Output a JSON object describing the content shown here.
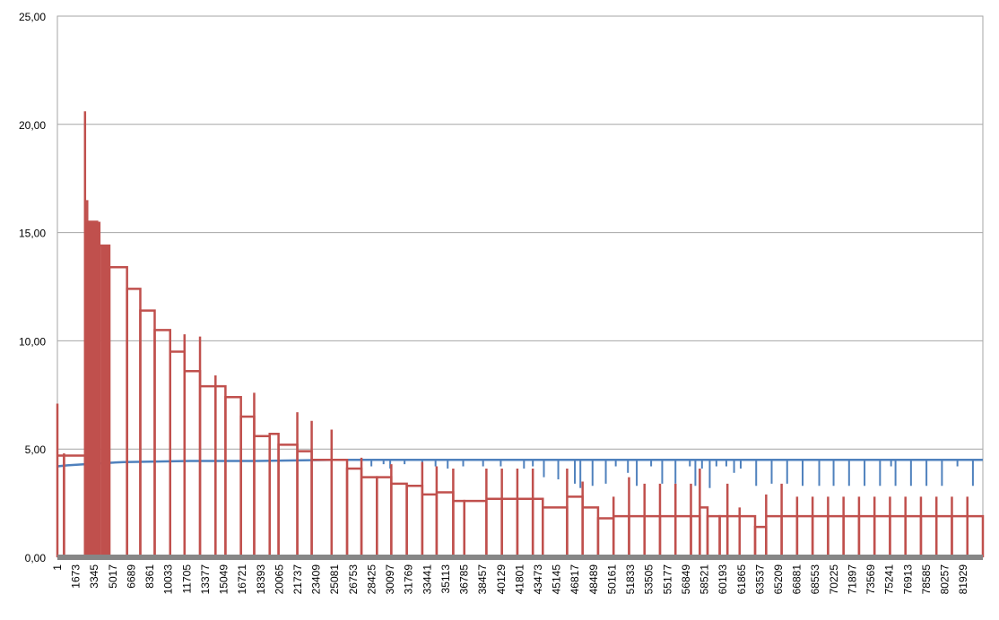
{
  "chart_data": {
    "type": "line",
    "title": "",
    "xlabel": "",
    "ylabel": "",
    "ylim": [
      0,
      25
    ],
    "xlim": [
      1,
      83700
    ],
    "grid": true,
    "legend": "none",
    "y_ticks": [
      "0,00",
      "5,00",
      "10,00",
      "15,00",
      "20,00",
      "25,00"
    ],
    "y_tick_values": [
      0,
      5,
      10,
      15,
      20,
      25
    ],
    "x_ticks": [
      "1",
      "1673",
      "3345",
      "5017",
      "6689",
      "8361",
      "10033",
      "11705",
      "13377",
      "15049",
      "16721",
      "18393",
      "20065",
      "21737",
      "23409",
      "25081",
      "26753",
      "28425",
      "30097",
      "31769",
      "33441",
      "35113",
      "36785",
      "38457",
      "40129",
      "41801",
      "43473",
      "45145",
      "46817",
      "48489",
      "50161",
      "51833",
      "53505",
      "55177",
      "56849",
      "58521",
      "60193",
      "61865",
      "63537",
      "65209",
      "66881",
      "68553",
      "70225",
      "71897",
      "73569",
      "75241",
      "76913",
      "78585",
      "80257",
      "81929"
    ],
    "colors": {
      "series_blue": "#4f81bd",
      "series_red": "#c0504d",
      "baseline": "#868686",
      "grid": "#a6a6a6"
    },
    "series": [
      {
        "color": "#c0504d",
        "baseline": 0,
        "segments": [
          {
            "x0": 1,
            "x1": 600,
            "v": 4.7,
            "spike": 7.1
          },
          {
            "x0": 600,
            "x1": 2500,
            "v": 4.7,
            "spike": 4.8
          },
          {
            "x0": 2500,
            "x1": 2700,
            "v": 14.5,
            "spike": 20.6
          },
          {
            "x0": 2700,
            "x1": 3600,
            "v": 15.5,
            "spike": 16.5
          },
          {
            "x0": 3600,
            "x1": 4700,
            "v": 14.4,
            "spike": 14.4
          },
          {
            "x0": 4700,
            "x1": 6300,
            "v": 13.4,
            "spike": 13.4
          },
          {
            "x0": 6300,
            "x1": 7500,
            "v": 12.4,
            "spike": 12.4
          },
          {
            "x0": 7500,
            "x1": 8800,
            "v": 11.4,
            "spike": 11.4
          },
          {
            "x0": 8800,
            "x1": 10200,
            "v": 10.5,
            "spike": 10.5
          },
          {
            "x0": 10200,
            "x1": 11500,
            "v": 9.5,
            "spike": 9.5
          },
          {
            "x0": 11500,
            "x1": 12900,
            "v": 8.6,
            "spike": 10.3
          },
          {
            "x0": 12900,
            "x1": 14300,
            "v": 7.9,
            "spike": 10.2
          },
          {
            "x0": 14300,
            "x1": 15200,
            "v": 7.9,
            "spike": 8.4
          },
          {
            "x0": 15200,
            "x1": 16600,
            "v": 7.4,
            "spike": 7.4
          },
          {
            "x0": 16600,
            "x1": 17800,
            "v": 6.5,
            "spike": 6.5
          },
          {
            "x0": 17800,
            "x1": 19200,
            "v": 5.6,
            "spike": 7.6
          },
          {
            "x0": 19200,
            "x1": 20000,
            "v": 5.7,
            "spike": 5.7
          },
          {
            "x0": 20000,
            "x1": 21700,
            "v": 5.2,
            "spike": 5.2
          },
          {
            "x0": 21700,
            "x1": 23000,
            "v": 4.9,
            "spike": 6.7
          },
          {
            "x0": 23000,
            "x1": 24800,
            "v": 4.5,
            "spike": 6.3
          },
          {
            "x0": 24800,
            "x1": 26200,
            "v": 4.5,
            "spike": 5.9
          },
          {
            "x0": 26200,
            "x1": 27500,
            "v": 4.1,
            "spike": 4.1
          },
          {
            "x0": 27500,
            "x1": 28900,
            "v": 3.7,
            "spike": 4.6
          },
          {
            "x0": 28900,
            "x1": 30200,
            "v": 3.7,
            "spike": 3.7
          },
          {
            "x0": 30200,
            "x1": 31600,
            "v": 3.4,
            "spike": 4.3
          },
          {
            "x0": 31600,
            "x1": 33000,
            "v": 3.3,
            "spike": 3.3
          },
          {
            "x0": 33000,
            "x1": 34300,
            "v": 2.9,
            "spike": 4.4
          },
          {
            "x0": 34300,
            "x1": 35800,
            "v": 3.0,
            "spike": 4.2
          },
          {
            "x0": 35800,
            "x1": 36800,
            "v": 2.6,
            "spike": 4.1
          },
          {
            "x0": 36800,
            "x1": 38800,
            "v": 2.6,
            "spike": 2.6
          },
          {
            "x0": 38800,
            "x1": 40200,
            "v": 2.7,
            "spike": 4.1
          },
          {
            "x0": 40200,
            "x1": 41600,
            "v": 2.7,
            "spike": 4.1
          },
          {
            "x0": 41600,
            "x1": 43000,
            "v": 2.7,
            "spike": 4.1
          },
          {
            "x0": 43000,
            "x1": 43900,
            "v": 2.7,
            "spike": 4.1
          },
          {
            "x0": 43900,
            "x1": 46100,
            "v": 2.3,
            "spike": 2.3
          },
          {
            "x0": 46100,
            "x1": 47500,
            "v": 2.8,
            "spike": 4.1
          },
          {
            "x0": 47500,
            "x1": 48900,
            "v": 2.3,
            "spike": 3.5
          },
          {
            "x0": 48900,
            "x1": 50300,
            "v": 1.8,
            "spike": 1.8
          },
          {
            "x0": 50300,
            "x1": 51700,
            "v": 1.9,
            "spike": 2.8
          },
          {
            "x0": 51700,
            "x1": 53100,
            "v": 1.9,
            "spike": 3.7
          },
          {
            "x0": 53100,
            "x1": 54500,
            "v": 1.9,
            "spike": 3.4
          },
          {
            "x0": 54500,
            "x1": 55900,
            "v": 1.9,
            "spike": 3.4
          },
          {
            "x0": 55900,
            "x1": 57300,
            "v": 1.9,
            "spike": 3.4
          },
          {
            "x0": 57300,
            "x1": 58100,
            "v": 1.9,
            "spike": 3.4
          },
          {
            "x0": 58100,
            "x1": 58800,
            "v": 2.3,
            "spike": 4.1
          },
          {
            "x0": 58800,
            "x1": 59900,
            "v": 1.9,
            "spike": 1.9
          },
          {
            "x0": 59900,
            "x1": 60600,
            "v": 1.9,
            "spike": 1.9
          },
          {
            "x0": 60600,
            "x1": 61700,
            "v": 1.9,
            "spike": 3.4
          },
          {
            "x0": 61700,
            "x1": 63100,
            "v": 1.9,
            "spike": 2.3
          },
          {
            "x0": 63100,
            "x1": 64100,
            "v": 1.4,
            "spike": 1.4
          },
          {
            "x0": 64100,
            "x1": 65500,
            "v": 1.9,
            "spike": 2.9
          },
          {
            "x0": 65500,
            "x1": 66900,
            "v": 1.9,
            "spike": 3.4
          },
          {
            "x0": 66900,
            "x1": 68300,
            "v": 1.9,
            "spike": 2.8
          },
          {
            "x0": 68300,
            "x1": 69700,
            "v": 1.9,
            "spike": 2.8
          },
          {
            "x0": 69700,
            "x1": 71100,
            "v": 1.9,
            "spike": 2.8
          },
          {
            "x0": 71100,
            "x1": 72500,
            "v": 1.9,
            "spike": 2.8
          },
          {
            "x0": 72500,
            "x1": 73900,
            "v": 1.9,
            "spike": 2.8
          },
          {
            "x0": 73900,
            "x1": 75300,
            "v": 1.9,
            "spike": 2.8
          },
          {
            "x0": 75300,
            "x1": 76700,
            "v": 1.9,
            "spike": 2.8
          },
          {
            "x0": 76700,
            "x1": 78100,
            "v": 1.9,
            "spike": 2.8
          },
          {
            "x0": 78100,
            "x1": 79500,
            "v": 1.9,
            "spike": 2.8
          },
          {
            "x0": 79500,
            "x1": 80900,
            "v": 1.9,
            "spike": 2.8
          },
          {
            "x0": 80900,
            "x1": 82300,
            "v": 1.9,
            "spike": 2.8
          },
          {
            "x0": 82300,
            "x1": 83700,
            "v": 1.9,
            "spike": 2.8
          }
        ]
      },
      {
        "color": "#4f81bd",
        "points": [
          [
            1,
            4.2
          ],
          [
            900,
            4.25
          ],
          [
            2500,
            4.3
          ],
          [
            6000,
            4.4
          ],
          [
            12000,
            4.45
          ],
          [
            18000,
            4.45
          ],
          [
            25000,
            4.5
          ],
          [
            30000,
            4.5
          ],
          [
            40000,
            4.5
          ],
          [
            50000,
            4.5
          ],
          [
            60000,
            4.5
          ],
          [
            70000,
            4.5
          ],
          [
            83700,
            4.5
          ]
        ],
        "dips": [
          {
            "x": 28400,
            "v": 4.2
          },
          {
            "x": 29500,
            "v": 4.3
          },
          {
            "x": 30100,
            "v": 4.1
          },
          {
            "x": 31400,
            "v": 4.3
          },
          {
            "x": 33000,
            "v": 4.2
          },
          {
            "x": 34200,
            "v": 4.2
          },
          {
            "x": 35300,
            "v": 4.1
          },
          {
            "x": 36700,
            "v": 4.2
          },
          {
            "x": 38500,
            "v": 4.2
          },
          {
            "x": 40100,
            "v": 4.2
          },
          {
            "x": 42200,
            "v": 4.1
          },
          {
            "x": 43000,
            "v": 4.2
          },
          {
            "x": 44000,
            "v": 3.7
          },
          {
            "x": 45300,
            "v": 3.6
          },
          {
            "x": 46800,
            "v": 3.4
          },
          {
            "x": 47300,
            "v": 3.2
          },
          {
            "x": 48400,
            "v": 3.3
          },
          {
            "x": 49600,
            "v": 3.4
          },
          {
            "x": 50500,
            "v": 4.2
          },
          {
            "x": 51600,
            "v": 3.9
          },
          {
            "x": 52400,
            "v": 3.3
          },
          {
            "x": 53700,
            "v": 4.2
          },
          {
            "x": 54700,
            "v": 3.4
          },
          {
            "x": 55900,
            "v": 3.4
          },
          {
            "x": 57200,
            "v": 4.2
          },
          {
            "x": 57700,
            "v": 3.3
          },
          {
            "x": 58300,
            "v": 4.1
          },
          {
            "x": 59000,
            "v": 3.2
          },
          {
            "x": 59600,
            "v": 4.2
          },
          {
            "x": 60500,
            "v": 4.2
          },
          {
            "x": 61200,
            "v": 3.9
          },
          {
            "x": 61800,
            "v": 4.1
          },
          {
            "x": 63200,
            "v": 3.3
          },
          {
            "x": 64600,
            "v": 3.4
          },
          {
            "x": 66000,
            "v": 3.4
          },
          {
            "x": 67400,
            "v": 3.3
          },
          {
            "x": 68900,
            "v": 3.3
          },
          {
            "x": 70200,
            "v": 3.3
          },
          {
            "x": 71600,
            "v": 3.3
          },
          {
            "x": 73000,
            "v": 3.3
          },
          {
            "x": 74400,
            "v": 3.3
          },
          {
            "x": 75400,
            "v": 4.2
          },
          {
            "x": 75800,
            "v": 3.3
          },
          {
            "x": 77200,
            "v": 3.3
          },
          {
            "x": 78600,
            "v": 3.3
          },
          {
            "x": 80000,
            "v": 3.3
          },
          {
            "x": 81400,
            "v": 4.2
          },
          {
            "x": 82800,
            "v": 3.3
          }
        ]
      }
    ]
  }
}
